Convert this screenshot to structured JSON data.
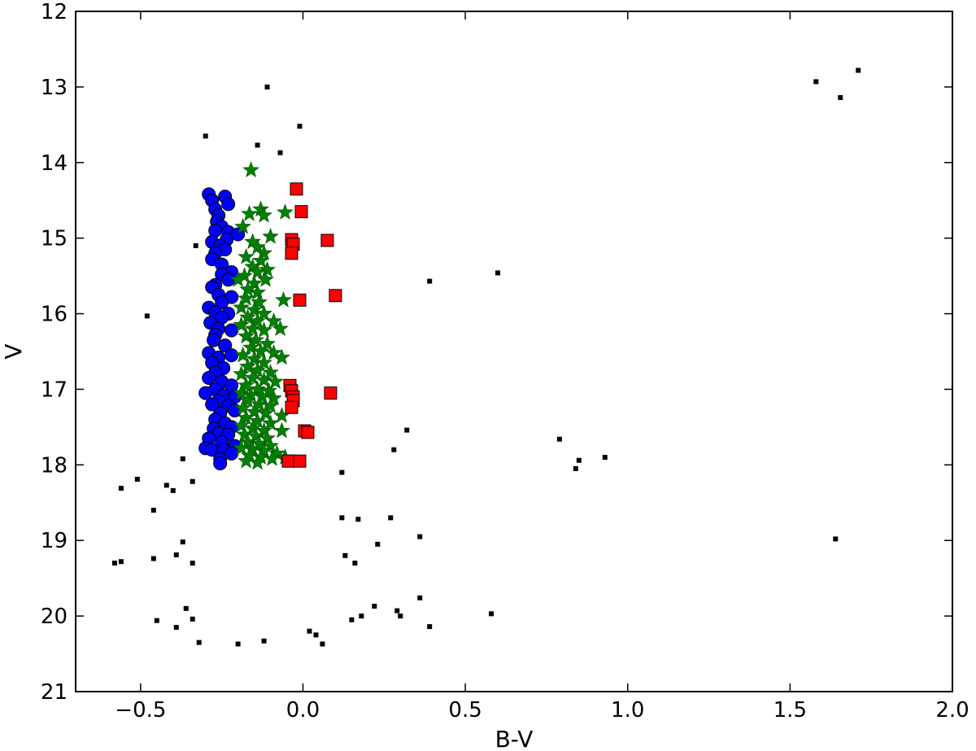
{
  "chart_data": {
    "type": "scatter",
    "title": "",
    "xlabel": "B-V",
    "ylabel": "V",
    "xlim": [
      -0.7,
      2.0
    ],
    "ylim": [
      21,
      12
    ],
    "y_inverted": true,
    "grid": false,
    "legend": "none",
    "xticks": [
      -0.5,
      0.0,
      0.5,
      1.0,
      1.5,
      2.0
    ],
    "xtick_labels": [
      "−0.5",
      "0.0",
      "0.5",
      "1.0",
      "1.5",
      "2.0"
    ],
    "yticks": [
      12,
      13,
      14,
      15,
      16,
      17,
      18,
      19,
      20,
      21
    ],
    "ytick_labels": [
      "12",
      "13",
      "14",
      "15",
      "16",
      "17",
      "18",
      "19",
      "20",
      "21"
    ],
    "series": [
      {
        "marker": "circle",
        "color": "#0000ff",
        "points": [
          [
            -0.29,
            14.42
          ],
          [
            -0.28,
            14.5
          ],
          [
            -0.24,
            14.45
          ],
          [
            -0.23,
            14.55
          ],
          [
            -0.27,
            14.62
          ],
          [
            -0.26,
            14.7
          ],
          [
            -0.265,
            14.78
          ],
          [
            -0.25,
            14.85
          ],
          [
            -0.27,
            14.9
          ],
          [
            -0.23,
            14.92
          ],
          [
            -0.2,
            14.95
          ],
          [
            -0.235,
            15.02
          ],
          [
            -0.28,
            15.05
          ],
          [
            -0.255,
            15.1
          ],
          [
            -0.24,
            15.15
          ],
          [
            -0.27,
            15.2
          ],
          [
            -0.28,
            15.28
          ],
          [
            -0.25,
            15.35
          ],
          [
            -0.22,
            15.45
          ],
          [
            -0.25,
            15.48
          ],
          [
            -0.23,
            15.55
          ],
          [
            -0.27,
            15.62
          ],
          [
            -0.28,
            15.65
          ],
          [
            -0.26,
            15.75
          ],
          [
            -0.22,
            15.78
          ],
          [
            -0.25,
            15.85
          ],
          [
            -0.29,
            15.92
          ],
          [
            -0.27,
            15.98
          ],
          [
            -0.23,
            16.0
          ],
          [
            -0.25,
            16.05
          ],
          [
            -0.285,
            16.12
          ],
          [
            -0.26,
            16.2
          ],
          [
            -0.22,
            16.22
          ],
          [
            -0.27,
            16.28
          ],
          [
            -0.275,
            16.35
          ],
          [
            -0.24,
            16.42
          ],
          [
            -0.29,
            16.52
          ],
          [
            -0.26,
            16.58
          ],
          [
            -0.22,
            16.55
          ],
          [
            -0.28,
            16.65
          ],
          [
            -0.245,
            16.72
          ],
          [
            -0.27,
            16.78
          ],
          [
            -0.29,
            16.85
          ],
          [
            -0.25,
            16.9
          ],
          [
            -0.22,
            16.95
          ],
          [
            -0.27,
            17.0
          ],
          [
            -0.3,
            17.05
          ],
          [
            -0.245,
            17.08
          ],
          [
            -0.21,
            17.1
          ],
          [
            -0.26,
            17.15
          ],
          [
            -0.28,
            17.2
          ],
          [
            -0.23,
            17.22
          ],
          [
            -0.21,
            17.28
          ],
          [
            -0.255,
            17.32
          ],
          [
            -0.27,
            17.4
          ],
          [
            -0.24,
            17.45
          ],
          [
            -0.22,
            17.5
          ],
          [
            -0.275,
            17.52
          ],
          [
            -0.26,
            17.58
          ],
          [
            -0.23,
            17.6
          ],
          [
            -0.29,
            17.65
          ],
          [
            -0.25,
            17.7
          ],
          [
            -0.21,
            17.75
          ],
          [
            -0.3,
            17.78
          ],
          [
            -0.28,
            17.8
          ],
          [
            -0.245,
            17.8
          ],
          [
            -0.22,
            17.85
          ],
          [
            -0.255,
            17.92
          ],
          [
            -0.255,
            17.98
          ]
        ]
      },
      {
        "marker": "star",
        "color": "#008000",
        "points": [
          [
            -0.16,
            14.1
          ],
          [
            -0.165,
            14.68
          ],
          [
            -0.13,
            14.62
          ],
          [
            -0.12,
            14.7
          ],
          [
            -0.055,
            14.66
          ],
          [
            -0.185,
            14.85
          ],
          [
            -0.1,
            14.98
          ],
          [
            -0.155,
            15.05
          ],
          [
            -0.14,
            15.12
          ],
          [
            -0.12,
            15.2
          ],
          [
            -0.175,
            15.25
          ],
          [
            -0.13,
            15.3
          ],
          [
            -0.155,
            15.38
          ],
          [
            -0.14,
            15.45
          ],
          [
            -0.11,
            15.42
          ],
          [
            -0.18,
            15.5
          ],
          [
            -0.2,
            15.55
          ],
          [
            -0.15,
            15.6
          ],
          [
            -0.115,
            15.55
          ],
          [
            -0.17,
            15.68
          ],
          [
            -0.14,
            15.72
          ],
          [
            -0.06,
            15.82
          ],
          [
            -0.175,
            15.8
          ],
          [
            -0.135,
            15.85
          ],
          [
            -0.19,
            15.92
          ],
          [
            -0.15,
            15.95
          ],
          [
            -0.12,
            16.0
          ],
          [
            -0.17,
            16.05
          ],
          [
            -0.14,
            16.1
          ],
          [
            -0.09,
            16.1
          ],
          [
            -0.19,
            16.15
          ],
          [
            -0.155,
            16.2
          ],
          [
            -0.12,
            16.22
          ],
          [
            -0.07,
            16.2
          ],
          [
            -0.175,
            16.3
          ],
          [
            -0.145,
            16.35
          ],
          [
            -0.11,
            16.4
          ],
          [
            -0.16,
            16.45
          ],
          [
            -0.13,
            16.5
          ],
          [
            -0.09,
            16.52
          ],
          [
            -0.185,
            16.55
          ],
          [
            -0.15,
            16.6
          ],
          [
            -0.065,
            16.58
          ],
          [
            -0.12,
            16.65
          ],
          [
            -0.17,
            16.7
          ],
          [
            -0.14,
            16.75
          ],
          [
            -0.1,
            16.78
          ],
          [
            -0.19,
            16.8
          ],
          [
            -0.155,
            16.85
          ],
          [
            -0.12,
            16.88
          ],
          [
            -0.085,
            16.9
          ],
          [
            -0.175,
            16.95
          ],
          [
            -0.14,
            17.0
          ],
          [
            -0.105,
            17.02
          ],
          [
            -0.19,
            17.05
          ],
          [
            -0.16,
            17.08
          ],
          [
            -0.125,
            17.1
          ],
          [
            -0.09,
            17.12
          ],
          [
            -0.17,
            17.15
          ],
          [
            -0.135,
            17.2
          ],
          [
            -0.1,
            17.22
          ],
          [
            -0.185,
            17.25
          ],
          [
            -0.15,
            17.3
          ],
          [
            -0.115,
            17.32
          ],
          [
            -0.065,
            17.35
          ],
          [
            -0.175,
            17.38
          ],
          [
            -0.14,
            17.42
          ],
          [
            -0.1,
            17.45
          ],
          [
            -0.19,
            17.48
          ],
          [
            -0.155,
            17.52
          ],
          [
            -0.12,
            17.55
          ],
          [
            -0.065,
            17.55
          ],
          [
            -0.18,
            17.6
          ],
          [
            -0.145,
            17.62
          ],
          [
            -0.11,
            17.65
          ],
          [
            -0.17,
            17.7
          ],
          [
            -0.135,
            17.72
          ],
          [
            -0.1,
            17.75
          ],
          [
            -0.19,
            17.78
          ],
          [
            -0.155,
            17.8
          ],
          [
            -0.12,
            17.82
          ],
          [
            -0.08,
            17.85
          ],
          [
            -0.165,
            17.88
          ],
          [
            -0.13,
            17.9
          ],
          [
            -0.095,
            17.92
          ],
          [
            -0.055,
            17.9
          ],
          [
            -0.175,
            17.95
          ],
          [
            -0.14,
            17.97
          ]
        ]
      },
      {
        "marker": "square",
        "color": "#ff0000",
        "points": [
          [
            -0.02,
            14.35
          ],
          [
            -0.005,
            14.65
          ],
          [
            -0.035,
            15.02
          ],
          [
            -0.03,
            15.08
          ],
          [
            -0.035,
            15.2
          ],
          [
            0.075,
            15.03
          ],
          [
            -0.01,
            15.82
          ],
          [
            0.1,
            15.76
          ],
          [
            -0.04,
            16.95
          ],
          [
            -0.035,
            17.02
          ],
          [
            -0.03,
            17.1
          ],
          [
            -0.03,
            17.15
          ],
          [
            -0.035,
            17.24
          ],
          [
            0.085,
            17.05
          ],
          [
            0.005,
            17.55
          ],
          [
            0.015,
            17.57
          ],
          [
            -0.045,
            17.95
          ],
          [
            -0.01,
            17.95
          ]
        ]
      },
      {
        "marker": "small-square",
        "color": "#000000",
        "points": [
          [
            -0.11,
            13.0
          ],
          [
            -0.3,
            13.65
          ],
          [
            -0.01,
            13.52
          ],
          [
            -0.14,
            13.77
          ],
          [
            -0.07,
            13.87
          ],
          [
            -0.33,
            15.1
          ],
          [
            -0.48,
            16.03
          ],
          [
            1.58,
            12.93
          ],
          [
            1.71,
            12.78
          ],
          [
            1.655,
            13.14
          ],
          [
            0.6,
            15.46
          ],
          [
            0.39,
            15.57
          ],
          [
            0.32,
            17.54
          ],
          [
            0.28,
            17.8
          ],
          [
            0.79,
            17.66
          ],
          [
            0.85,
            17.94
          ],
          [
            0.84,
            18.05
          ],
          [
            0.93,
            17.9
          ],
          [
            1.64,
            18.98
          ],
          [
            0.58,
            19.97
          ],
          [
            0.39,
            20.14
          ],
          [
            0.36,
            19.76
          ],
          [
            0.36,
            18.95
          ],
          [
            0.27,
            18.7
          ],
          [
            0.12,
            18.1
          ],
          [
            -0.56,
            18.31
          ],
          [
            -0.51,
            18.19
          ],
          [
            -0.46,
            18.6
          ],
          [
            -0.42,
            18.27
          ],
          [
            -0.4,
            18.34
          ],
          [
            -0.37,
            17.92
          ],
          [
            -0.34,
            18.22
          ],
          [
            -0.31,
            17.75
          ],
          [
            -0.58,
            19.3
          ],
          [
            -0.56,
            19.28
          ],
          [
            -0.46,
            19.24
          ],
          [
            -0.39,
            19.19
          ],
          [
            -0.37,
            19.02
          ],
          [
            -0.34,
            19.3
          ],
          [
            -0.45,
            20.06
          ],
          [
            -0.39,
            20.15
          ],
          [
            -0.36,
            19.9
          ],
          [
            -0.32,
            20.35
          ],
          [
            -0.34,
            20.04
          ],
          [
            0.3,
            20.0
          ],
          [
            0.29,
            19.93
          ],
          [
            0.22,
            19.87
          ],
          [
            0.18,
            20.0
          ],
          [
            0.15,
            20.05
          ],
          [
            0.12,
            18.7
          ],
          [
            0.17,
            18.72
          ],
          [
            0.23,
            19.05
          ],
          [
            0.16,
            19.3
          ],
          [
            0.13,
            19.2
          ],
          [
            -0.2,
            20.37
          ],
          [
            -0.12,
            20.33
          ],
          [
            0.06,
            20.37
          ],
          [
            0.04,
            20.25
          ],
          [
            0.02,
            20.2
          ]
        ]
      }
    ]
  }
}
